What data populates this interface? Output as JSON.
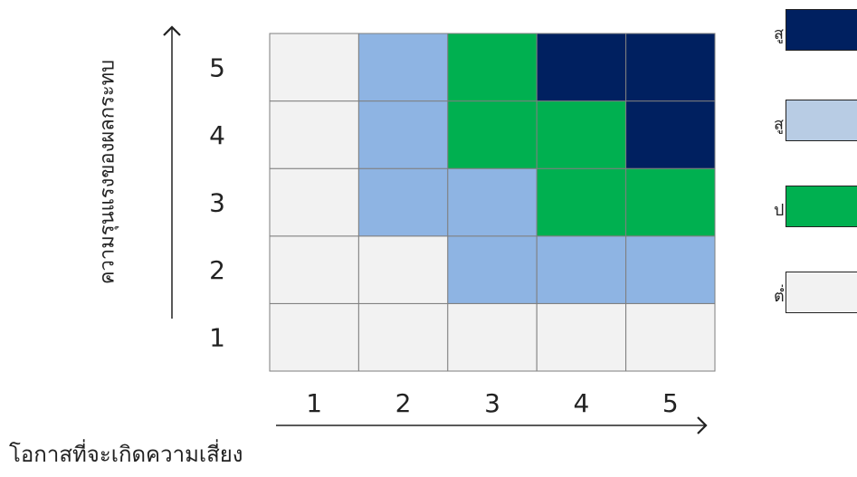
{
  "chart_data": {
    "type": "heatmap",
    "x_categories": [
      "1",
      "2",
      "3",
      "4",
      "5"
    ],
    "y_categories": [
      "1",
      "2",
      "3",
      "4",
      "5"
    ],
    "xlabel": "โอกาสที่จะเกิดความเสี่ยง",
    "ylabel": "ความรุนแรงของผลกระทบ",
    "levels": [
      {
        "level": 0,
        "color": "#f2f2f2"
      },
      {
        "level": 1,
        "color": "#8eb4e3"
      },
      {
        "level": 2,
        "color": "#00b050"
      },
      {
        "level": 3,
        "color": "#002060"
      }
    ],
    "cells": [
      [
        0,
        0,
        0,
        0,
        0
      ],
      [
        0,
        0,
        1,
        1,
        1
      ],
      [
        0,
        1,
        1,
        2,
        2
      ],
      [
        0,
        1,
        2,
        2,
        3
      ],
      [
        0,
        1,
        2,
        3,
        3
      ]
    ],
    "legend": [
      {
        "label": "สู",
        "color": "#002060"
      },
      {
        "label": "สู",
        "color": "#b8cce4"
      },
      {
        "label": "ป",
        "color": "#00b050"
      },
      {
        "label": "ต่ำ",
        "color": "#f2f2f2"
      }
    ]
  }
}
